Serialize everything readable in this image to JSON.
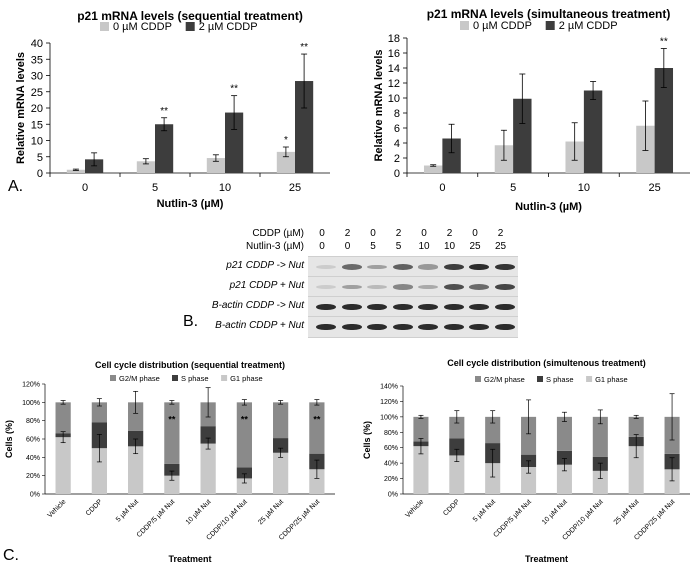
{
  "panel_labels": {
    "a": "A.",
    "b": "B.",
    "c": "C."
  },
  "colors": {
    "light": "#c8c8c8",
    "dark": "#3d3d3d",
    "mid": "#8a8a8a",
    "band": "#222222"
  },
  "chart_data": [
    {
      "id": "chartA1",
      "type": "bar",
      "title": "p21 mRNA levels (sequential treatment)",
      "xlabel": "Nutlin-3 (µM)",
      "ylabel": "Relative mRNA levels",
      "categories": [
        "0",
        "5",
        "10",
        "25"
      ],
      "ylim": [
        0,
        40
      ],
      "yticks": [
        0,
        5,
        10,
        15,
        20,
        25,
        30,
        35,
        40
      ],
      "legend": "top",
      "series": [
        {
          "name": "0 µM CDDP",
          "values": [
            1.0,
            3.6,
            4.6,
            6.5
          ],
          "errors": [
            0.2,
            0.8,
            1.0,
            1.5
          ]
        },
        {
          "name": "2 µM CDDP",
          "values": [
            4.2,
            15.0,
            18.6,
            28.3
          ],
          "errors": [
            2.0,
            2.0,
            5.2,
            8.3
          ]
        }
      ],
      "annotations": [
        {
          "category": 1,
          "series": 1,
          "text": "**"
        },
        {
          "category": 2,
          "series": 1,
          "text": "**"
        },
        {
          "category": 3,
          "series": 0,
          "text": "*"
        },
        {
          "category": 3,
          "series": 1,
          "text": "**"
        }
      ]
    },
    {
      "id": "chartA2",
      "type": "bar",
      "title": "p21 mRNA levels (simultaneous treatment)",
      "xlabel": "Nutlin-3 (µM)",
      "ylabel": "Relative mRNA levels",
      "categories": [
        "0",
        "5",
        "10",
        "25"
      ],
      "ylim": [
        0,
        18
      ],
      "yticks": [
        0,
        2,
        4,
        6,
        8,
        10,
        12,
        14,
        16,
        18
      ],
      "legend": "top",
      "series": [
        {
          "name": "0 µM CDDP",
          "values": [
            1.0,
            3.7,
            4.2,
            6.3
          ],
          "errors": [
            0.1,
            2.0,
            2.5,
            3.3
          ]
        },
        {
          "name": "2 µM CDDP",
          "values": [
            4.6,
            9.9,
            11.0,
            14.0
          ],
          "errors": [
            1.9,
            3.3,
            1.2,
            2.6
          ]
        }
      ],
      "annotations": [
        {
          "category": 3,
          "series": 1,
          "text": "**"
        }
      ]
    },
    {
      "id": "chartC1",
      "type": "stacked-bar",
      "title": "Cell cycle distribution (sequential treatment)",
      "xlabel": "Treatment",
      "ylabel": "Cells (%)",
      "categories": [
        "Vehicle",
        "CDDP",
        "5  µM Nut",
        "CDDP/5 µM Nut",
        "10  µM Nut",
        "CDDP/10 µM Nut",
        "25  µM Nut",
        "CDDP/25 µM Nut"
      ],
      "ylim": [
        0,
        120
      ],
      "yticks": [
        0,
        20,
        40,
        60,
        80,
        100,
        120
      ],
      "ytick_suffix": "%",
      "legend": "top",
      "series": [
        {
          "name": "G1 phase",
          "values": [
            62,
            50,
            52,
            20,
            55,
            17,
            45,
            27
          ],
          "errors": [
            6,
            15,
            8,
            5,
            6,
            5,
            5,
            10
          ]
        },
        {
          "name": "S phase",
          "values": [
            4,
            28,
            17,
            13,
            19,
            12,
            16,
            17
          ],
          "errors": [
            0,
            0,
            0,
            0,
            0,
            0,
            0,
            0
          ]
        },
        {
          "name": "G2/M phase",
          "values": [
            34,
            22,
            31,
            67,
            26,
            71,
            39,
            56
          ],
          "errors": [
            2,
            4,
            12,
            2,
            16,
            3,
            2,
            3
          ]
        }
      ],
      "annotations": [
        {
          "category": 3,
          "text": "**"
        },
        {
          "category": 5,
          "text": "**"
        },
        {
          "category": 7,
          "text": "**"
        }
      ]
    },
    {
      "id": "chartC2",
      "type": "stacked-bar",
      "title": "Cell cycle distribution (simultenous treatment)",
      "xlabel": "Treatment",
      "ylabel": "Cells (%)",
      "categories": [
        "Vehicle",
        "CDDP",
        "5  µM Nut",
        "CDDP/5 µM Nut",
        "10  µM Nut",
        "CDDP/10 µM Nut",
        "25  µM Nut",
        "CDDP/25 µM Nut"
      ],
      "ylim": [
        0,
        140
      ],
      "yticks": [
        0,
        20,
        40,
        60,
        80,
        100,
        120,
        140
      ],
      "ytick_suffix": "%",
      "legend": "top",
      "series": [
        {
          "name": "G1 phase",
          "values": [
            62,
            50,
            40,
            35,
            38,
            30,
            62,
            32
          ],
          "errors": [
            10,
            8,
            18,
            8,
            8,
            10,
            15,
            15
          ]
        },
        {
          "name": "S phase",
          "values": [
            6,
            22,
            26,
            16,
            18,
            18,
            12,
            20
          ],
          "errors": [
            0,
            0,
            0,
            0,
            0,
            0,
            0,
            0
          ]
        },
        {
          "name": "G2/M phase",
          "values": [
            32,
            28,
            34,
            49,
            44,
            52,
            26,
            48
          ],
          "errors": [
            2,
            8,
            8,
            22,
            6,
            9,
            2,
            30
          ]
        }
      ],
      "annotations": []
    }
  ],
  "western_blot": {
    "header_rows": [
      {
        "name": "CDDP (µM)",
        "values": [
          "0",
          "2",
          "0",
          "2",
          "0",
          "2",
          "0",
          "2"
        ]
      },
      {
        "name": "Nutlin-3 (µM)",
        "values": [
          "0",
          "0",
          "5",
          "5",
          "10",
          "10",
          "25",
          "25"
        ]
      }
    ],
    "blots": [
      {
        "label": "p21 CDDP -> Nut",
        "intensity": [
          0.05,
          0.6,
          0.3,
          0.65,
          0.35,
          0.85,
          0.95,
          0.9
        ]
      },
      {
        "label": "p21  CDDP + Nut",
        "intensity": [
          0.05,
          0.3,
          0.15,
          0.45,
          0.25,
          0.75,
          0.6,
          0.8
        ]
      },
      {
        "label": "B-actin CDDP -> Nut",
        "intensity": [
          0.95,
          0.95,
          0.95,
          0.95,
          0.95,
          0.95,
          0.95,
          0.95
        ]
      },
      {
        "label": "B-actin  CDDP + Nut",
        "intensity": [
          0.95,
          0.95,
          0.95,
          0.95,
          0.95,
          0.95,
          0.95,
          0.95
        ]
      }
    ]
  }
}
